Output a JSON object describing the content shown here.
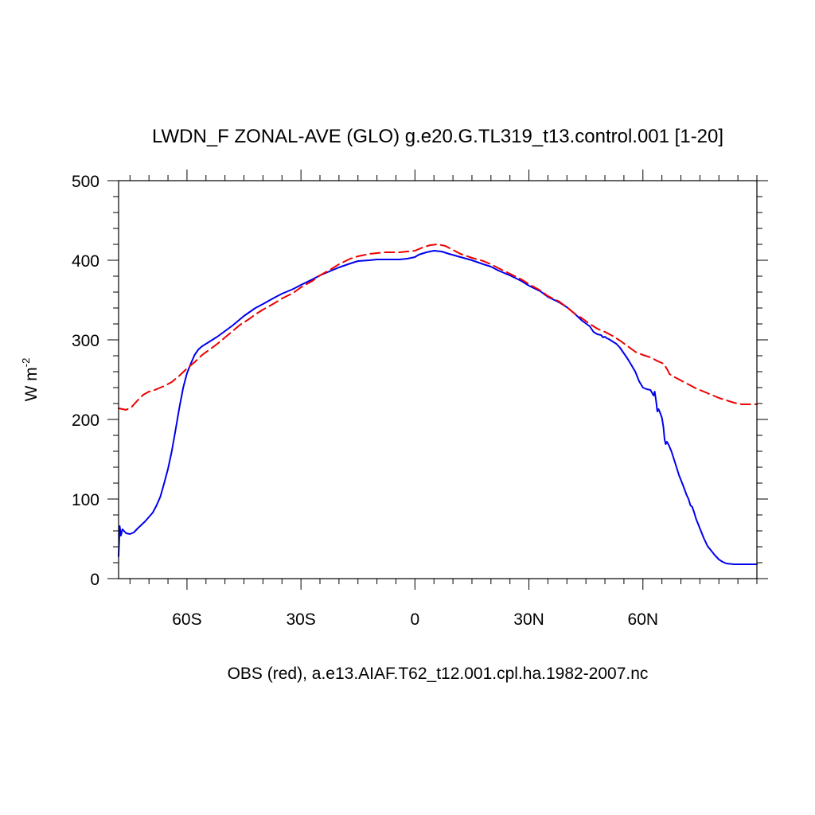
{
  "chart_data": {
    "type": "line",
    "title": "LWDN_F ZONAL-AVE (GLO) g.e20.G.TL319_t13.control.001 [1-20]",
    "caption": "OBS (red), a.e13.AIAF.T62_t12.001.cpl.ha.1982-2007.nc",
    "ylabel": "W m",
    "ylabel_exponent": "-2",
    "xlim": [
      -78,
      90
    ],
    "ylim": [
      0,
      500
    ],
    "xticks": [
      {
        "value": -60,
        "label": "60S"
      },
      {
        "value": -30,
        "label": "30S"
      },
      {
        "value": 0,
        "label": "0"
      },
      {
        "value": 30,
        "label": "30N"
      },
      {
        "value": 60,
        "label": "60N"
      }
    ],
    "yticks": [
      {
        "value": 0,
        "label": "0"
      },
      {
        "value": 100,
        "label": "100"
      },
      {
        "value": 200,
        "label": "200"
      },
      {
        "value": 300,
        "label": "300"
      },
      {
        "value": 400,
        "label": "400"
      },
      {
        "value": 500,
        "label": "500"
      }
    ],
    "grid": false,
    "series": [
      {
        "color": "#0000ee",
        "style": "solid",
        "points": [
          [
            -78,
            28
          ],
          [
            -77.7,
            66
          ],
          [
            -77.4,
            54
          ],
          [
            -77,
            62
          ],
          [
            -76,
            57
          ],
          [
            -75,
            56
          ],
          [
            -74,
            58
          ],
          [
            -73,
            63
          ],
          [
            -71,
            72
          ],
          [
            -69,
            83
          ],
          [
            -68,
            92
          ],
          [
            -67,
            103
          ],
          [
            -66,
            120
          ],
          [
            -65,
            138
          ],
          [
            -64,
            160
          ],
          [
            -63,
            187
          ],
          [
            -62,
            215
          ],
          [
            -61,
            240
          ],
          [
            -60,
            258
          ],
          [
            -59,
            270
          ],
          [
            -58,
            281
          ],
          [
            -57,
            288
          ],
          [
            -56,
            292
          ],
          [
            -54,
            298
          ],
          [
            -52,
            304
          ],
          [
            -50,
            311
          ],
          [
            -48,
            318
          ],
          [
            -45,
            330
          ],
          [
            -42,
            340
          ],
          [
            -40,
            345
          ],
          [
            -37,
            353
          ],
          [
            -35,
            358
          ],
          [
            -32,
            364
          ],
          [
            -30,
            369
          ],
          [
            -27,
            376
          ],
          [
            -25,
            381
          ],
          [
            -22,
            387
          ],
          [
            -20,
            391
          ],
          [
            -17,
            396
          ],
          [
            -15,
            399
          ],
          [
            -12,
            400
          ],
          [
            -10,
            401
          ],
          [
            -8,
            401
          ],
          [
            -6,
            401
          ],
          [
            -4,
            401
          ],
          [
            -2,
            402
          ],
          [
            0,
            404
          ],
          [
            1,
            407
          ],
          [
            3,
            410
          ],
          [
            5,
            412
          ],
          [
            7,
            411
          ],
          [
            9,
            408
          ],
          [
            12,
            404
          ],
          [
            15,
            400
          ],
          [
            18,
            395
          ],
          [
            20,
            392
          ],
          [
            22,
            387
          ],
          [
            25,
            381
          ],
          [
            28,
            374
          ],
          [
            30,
            368
          ],
          [
            33,
            361
          ],
          [
            35,
            354
          ],
          [
            38,
            347
          ],
          [
            40,
            341
          ],
          [
            42,
            333
          ],
          [
            44,
            324
          ],
          [
            46,
            317
          ],
          [
            47,
            310
          ],
          [
            48,
            307
          ],
          [
            49,
            306
          ],
          [
            49.5,
            303
          ],
          [
            50,
            304
          ],
          [
            50.5,
            302
          ],
          [
            51,
            301
          ],
          [
            52,
            298
          ],
          [
            53,
            295
          ],
          [
            54,
            290
          ],
          [
            55,
            283
          ],
          [
            56,
            276
          ],
          [
            57,
            268
          ],
          [
            58,
            260
          ],
          [
            59,
            248
          ],
          [
            60,
            240
          ],
          [
            61,
            238
          ],
          [
            62,
            237
          ],
          [
            62.8,
            230
          ],
          [
            63.1,
            235
          ],
          [
            63.5,
            222
          ],
          [
            63.8,
            210
          ],
          [
            64.1,
            213
          ],
          [
            64.4,
            210
          ],
          [
            65,
            202
          ],
          [
            65.4,
            190
          ],
          [
            65.7,
            175
          ],
          [
            66,
            169
          ],
          [
            66.3,
            172
          ],
          [
            66.8,
            168
          ],
          [
            67.5,
            160
          ],
          [
            68.5,
            145
          ],
          [
            69.5,
            130
          ],
          [
            70.5,
            118
          ],
          [
            71.5,
            105
          ],
          [
            72,
            100
          ],
          [
            72.5,
            92
          ],
          [
            73,
            90
          ],
          [
            73.5,
            83
          ],
          [
            74,
            75
          ],
          [
            75,
            63
          ],
          [
            76,
            51
          ],
          [
            77,
            41
          ],
          [
            78,
            35
          ],
          [
            79,
            29
          ],
          [
            80,
            24
          ],
          [
            81,
            21
          ],
          [
            82,
            19
          ],
          [
            84,
            18
          ],
          [
            86,
            18
          ],
          [
            88,
            18
          ],
          [
            90,
            18
          ]
        ]
      },
      {
        "color": "#ee0000",
        "style": "dashed",
        "points": [
          [
            -78,
            214
          ],
          [
            -77,
            213
          ],
          [
            -76,
            212
          ],
          [
            -74.5,
            216
          ],
          [
            -73,
            224
          ],
          [
            -71.5,
            231
          ],
          [
            -70,
            235
          ],
          [
            -69,
            236
          ],
          [
            -68,
            238
          ],
          [
            -66,
            242
          ],
          [
            -64,
            247
          ],
          [
            -62,
            255
          ],
          [
            -60,
            264
          ],
          [
            -58,
            272
          ],
          [
            -56,
            281
          ],
          [
            -54,
            288
          ],
          [
            -52,
            295
          ],
          [
            -50,
            303
          ],
          [
            -48,
            311
          ],
          [
            -46,
            319
          ],
          [
            -44,
            325
          ],
          [
            -42,
            332
          ],
          [
            -40,
            338
          ],
          [
            -37,
            346
          ],
          [
            -35,
            352
          ],
          [
            -32,
            359
          ],
          [
            -30,
            366
          ],
          [
            -27,
            374
          ],
          [
            -25,
            381
          ],
          [
            -22,
            389
          ],
          [
            -20,
            395
          ],
          [
            -17,
            402
          ],
          [
            -15,
            405
          ],
          [
            -12,
            408
          ],
          [
            -10,
            409
          ],
          [
            -8,
            410
          ],
          [
            -6,
            410
          ],
          [
            -4,
            410
          ],
          [
            -2,
            411
          ],
          [
            0,
            412
          ],
          [
            2,
            416
          ],
          [
            4,
            419
          ],
          [
            6,
            420
          ],
          [
            8,
            418
          ],
          [
            10,
            413
          ],
          [
            12,
            408
          ],
          [
            15,
            403
          ],
          [
            18,
            399
          ],
          [
            20,
            395
          ],
          [
            22,
            390
          ],
          [
            25,
            383
          ],
          [
            28,
            376
          ],
          [
            30,
            370
          ],
          [
            33,
            362
          ],
          [
            35,
            355
          ],
          [
            38,
            348
          ],
          [
            40,
            341
          ],
          [
            42,
            333
          ],
          [
            44,
            327
          ],
          [
            46,
            320
          ],
          [
            48,
            314
          ],
          [
            50,
            310
          ],
          [
            52,
            305
          ],
          [
            54,
            299
          ],
          [
            56,
            292
          ],
          [
            58,
            285
          ],
          [
            60,
            281
          ],
          [
            62,
            278
          ],
          [
            64,
            273
          ],
          [
            65.5,
            270
          ],
          [
            66.5,
            262
          ],
          [
            67,
            257
          ],
          [
            68,
            254
          ],
          [
            70,
            249
          ],
          [
            72,
            244
          ],
          [
            74,
            239
          ],
          [
            76,
            235
          ],
          [
            78,
            231
          ],
          [
            80,
            227
          ],
          [
            82,
            224
          ],
          [
            84,
            221
          ],
          [
            86,
            219
          ],
          [
            88,
            219
          ],
          [
            90,
            219
          ]
        ]
      }
    ]
  }
}
